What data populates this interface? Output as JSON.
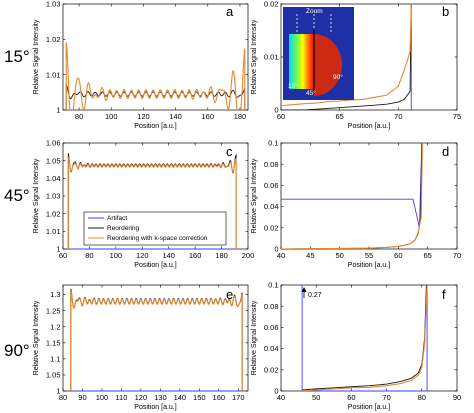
{
  "row_labels": [
    "15°",
    "45°",
    "90°"
  ],
  "colors": {
    "artifact": "#3b3bff",
    "reordering": "#1a1a1a",
    "kspace": "#e8882b"
  },
  "legend": {
    "items": [
      {
        "label": "Artifact",
        "color": "#3b3bff"
      },
      {
        "label": "Reordering",
        "color": "#1a1a1a"
      },
      {
        "label": "Reordering with k-space correction",
        "color": "#e8882b"
      }
    ]
  },
  "inset": {
    "zoom_label": "Zoom",
    "angle_labels": [
      "15°",
      "45°",
      "90°"
    ]
  },
  "annotation": {
    "label": "0.27"
  },
  "chart_data": [
    {
      "id": "a",
      "letter": "a",
      "type": "line",
      "xlabel": "Position [a.u.]",
      "ylabel": "Relative Signal Intensity",
      "xlim": [
        70,
        185
      ],
      "ylim": [
        1,
        1.03
      ],
      "xticks": [
        80,
        100,
        120,
        140,
        160,
        180
      ],
      "yticks": [
        1,
        1.01,
        1.02,
        1.03
      ],
      "ytick_labels": [
        "1",
        "1.01",
        "1.02",
        "1.03"
      ],
      "series": [
        {
          "name": "Artifact",
          "x": [
            72,
            183
          ],
          "y": [
            1.0,
            1.0
          ]
        },
        {
          "name": "Reordering",
          "x0": 72,
          "x1": 183,
          "mean": 1.0045,
          "edge": 1.0065,
          "ripple": 0.0006,
          "period": 4.5,
          "edge_decay": 5
        },
        {
          "name": "Reordering with k-space correction",
          "x0": 72,
          "x1": 183,
          "mean": 1.0045,
          "edge": 1.018,
          "ripple": 0.0012,
          "period": 4.5,
          "edge_decay": 8
        }
      ]
    },
    {
      "id": "b",
      "letter": "b",
      "type": "line",
      "xlabel": "Position [a.u.]",
      "ylabel": "Relative Signal Intensity",
      "xlim": [
        60,
        75
      ],
      "ylim": [
        0,
        0.02
      ],
      "xticks": [
        60,
        65,
        70,
        75
      ],
      "yticks": [
        0,
        0.01,
        0.02
      ],
      "ytick_labels": [
        "0",
        "0.01",
        "0.02"
      ],
      "series": [
        {
          "name": "Artifact",
          "x": [
            60,
            71.1,
            71.1
          ],
          "y": [
            0,
            0,
            0.02
          ]
        },
        {
          "name": "Reordering",
          "x": [
            60,
            62,
            64,
            66,
            68,
            69,
            70,
            70.5,
            71,
            71.1
          ],
          "y": [
            0,
            0,
            0.0003,
            0.0006,
            0.0009,
            0.0011,
            0.0015,
            0.002,
            0.0035,
            0.02
          ]
        },
        {
          "name": "Reordering with k-space correction",
          "x": [
            60,
            61,
            62,
            63,
            64,
            65,
            66,
            67,
            68,
            69,
            70,
            70.5,
            71,
            71.1
          ],
          "y": [
            0.0008,
            0.001,
            0.0012,
            0.0013,
            0.0016,
            0.0017,
            0.0019,
            0.002,
            0.0024,
            0.0028,
            0.0045,
            0.0075,
            0.011,
            0.02
          ]
        }
      ]
    },
    {
      "id": "c",
      "letter": "c",
      "type": "line",
      "xlabel": "Position [a.u.]",
      "ylabel": "Relative Signal Intensity",
      "xlim": [
        60,
        200
      ],
      "ylim": [
        1,
        1.06
      ],
      "xticks": [
        60,
        80,
        100,
        120,
        140,
        160,
        180,
        200
      ],
      "yticks": [
        1,
        1.01,
        1.02,
        1.03,
        1.04,
        1.05,
        1.06
      ],
      "ytick_labels": [
        "1",
        "1.01",
        "1.02",
        "1.03",
        "1.04",
        "1.05",
        "1.06"
      ],
      "series": [
        {
          "name": "Artifact",
          "x": [
            64,
            191
          ],
          "y": [
            1.0,
            1.0
          ]
        },
        {
          "name": "Reordering",
          "x0": 64,
          "x1": 191,
          "mean": 1.0475,
          "edge": 1.0535,
          "ripple": 0.0007,
          "period": 3,
          "edge_decay": 5
        },
        {
          "name": "Reordering with k-space correction",
          "x0": 64,
          "x1": 191,
          "mean": 1.047,
          "edge": 1.0515,
          "ripple": 0.0007,
          "period": 3,
          "edge_decay": 5
        }
      ]
    },
    {
      "id": "d",
      "letter": "d",
      "type": "line",
      "xlabel": "Position [a.u.]",
      "ylabel": "Relative Signal Intensity",
      "xlim": [
        40,
        70
      ],
      "ylim": [
        0,
        0.1
      ],
      "xticks": [
        40,
        45,
        50,
        55,
        60,
        65,
        70
      ],
      "yticks": [
        0,
        0.02,
        0.04,
        0.06,
        0.08,
        0.1
      ],
      "ytick_labels": [
        "0",
        "0.02",
        "0.04",
        "0.06",
        "0.08",
        "0.1"
      ],
      "series": [
        {
          "name": "Artifact",
          "x": [
            40,
            62.5,
            63.2,
            63.6,
            64
          ],
          "y": [
            0.047,
            0.047,
            0.03,
            0.02,
            0.1
          ]
        },
        {
          "name": "Reordering",
          "x": [
            40,
            55,
            58,
            60,
            61,
            62,
            62.8,
            63.4,
            63.8,
            64
          ],
          "y": [
            0.0,
            0.0008,
            0.0015,
            0.0025,
            0.0035,
            0.005,
            0.008,
            0.015,
            0.03,
            0.1
          ]
        },
        {
          "name": "Reordering with k-space correction",
          "x": [
            40,
            55,
            58,
            60,
            61,
            62,
            62.8,
            63.4,
            63.9,
            64.1
          ],
          "y": [
            0.0,
            0.0008,
            0.0015,
            0.0025,
            0.0035,
            0.005,
            0.008,
            0.016,
            0.03,
            0.1
          ]
        }
      ]
    },
    {
      "id": "e",
      "letter": "e",
      "type": "line",
      "xlabel": "Position [a.u.]",
      "ylabel": "Relative Signal Intensity",
      "xlim": [
        80,
        175
      ],
      "ylim": [
        1,
        1.33
      ],
      "xticks": [
        80,
        90,
        100,
        110,
        120,
        130,
        140,
        150,
        160,
        170
      ],
      "yticks": [
        1,
        1.05,
        1.1,
        1.15,
        1.2,
        1.25,
        1.3
      ],
      "ytick_labels": [
        "1",
        "1.05",
        "1.1",
        "1.15",
        "1.2",
        "1.25",
        "1.3"
      ],
      "series": [
        {
          "name": "Artifact",
          "x": [
            84,
            172
          ],
          "y": [
            1.0,
            1.0
          ]
        },
        {
          "name": "Reordering",
          "x0": 84,
          "x1": 172,
          "mean": 1.28,
          "edge": 1.31,
          "ripple": 0.008,
          "period": 2.4,
          "edge_decay": 4
        },
        {
          "name": "Reordering with k-space correction",
          "x0": 84,
          "x1": 172,
          "mean": 1.278,
          "edge": 1.305,
          "ripple": 0.008,
          "period": 2.4,
          "edge_decay": 4
        }
      ]
    },
    {
      "id": "f",
      "letter": "f",
      "type": "line",
      "xlabel": "Position [a.u.]",
      "ylabel": "Relative Signal Intensity",
      "xlim": [
        40,
        90
      ],
      "ylim": [
        0,
        0.1
      ],
      "xticks": [
        40,
        50,
        60,
        70,
        80,
        90
      ],
      "yticks": [
        0,
        0.02,
        0.04,
        0.06,
        0.08,
        0.1
      ],
      "ytick_labels": [
        "0",
        "0.02",
        "0.04",
        "0.06",
        "0.08",
        "0.1"
      ],
      "series": [
        {
          "name": "Artifact",
          "x": [
            46,
            46,
            81.5,
            81.5
          ],
          "y": [
            0.1,
            0,
            0,
            0.1
          ]
        },
        {
          "name": "Reordering",
          "x": [
            46,
            50,
            55,
            60,
            65,
            70,
            74,
            77,
            79,
            80,
            80.8,
            81.3
          ],
          "y": [
            0.001,
            0.002,
            0.003,
            0.004,
            0.005,
            0.0065,
            0.009,
            0.012,
            0.017,
            0.025,
            0.05,
            0.1
          ]
        },
        {
          "name": "Reordering with k-space correction",
          "x": [
            46,
            50,
            55,
            60,
            65,
            70,
            74,
            77,
            79,
            80,
            80.8,
            81.5
          ],
          "y": [
            0.0,
            0.001,
            0.002,
            0.003,
            0.0035,
            0.005,
            0.007,
            0.01,
            0.015,
            0.022,
            0.045,
            0.1
          ]
        }
      ]
    }
  ]
}
